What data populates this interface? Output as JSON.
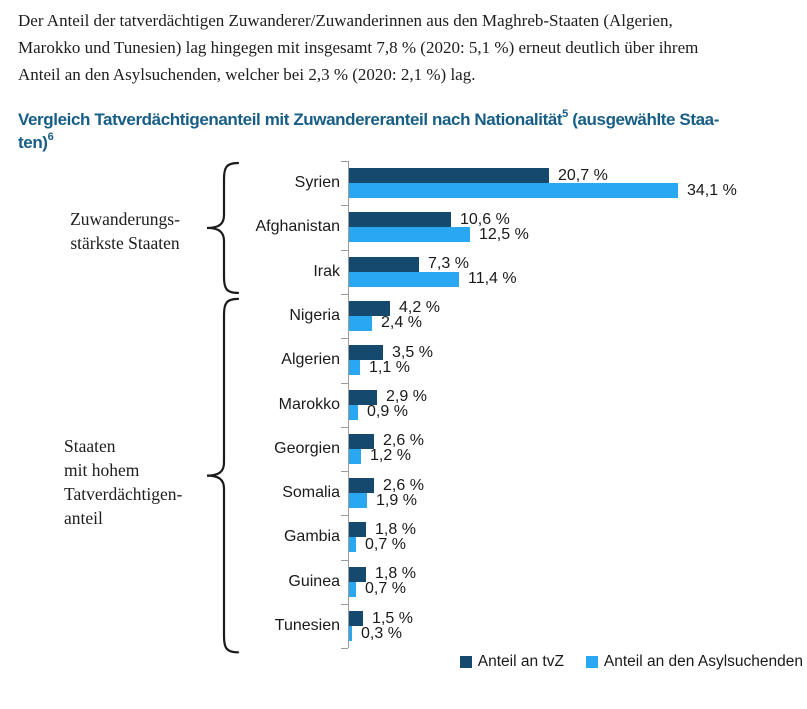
{
  "paragraph": {
    "lines": [
      "Der Anteil der tatverdächtigen Zuwanderer/Zuwanderinnen aus den Maghreb-Staaten (Algerien,",
      "Marokko und Tunesien) lag hingegen mit insgesamt 7,8 % (2020: 5,1 %) erneut deutlich über ihrem",
      "Anteil an den Asylsuchenden, welcher bei 2,3 % (2020: 2,1 %) lag."
    ]
  },
  "heading": {
    "part1": "Vergleich Tatverdächtigenanteil mit Zuwandereranteil nach Nationalität",
    "sup1": "5",
    "part2": " (ausgewählte Staa-",
    "part3": "ten)",
    "sup2": "6",
    "color": "#175e87"
  },
  "chart_data": {
    "type": "bar",
    "orientation": "horizontal",
    "title": "Vergleich Tatverdächtigenanteil mit Zuwandereranteil nach Nationalität (ausgewählte Staaten)",
    "xlabel": "",
    "ylabel": "",
    "xlim": [
      0,
      35
    ],
    "unit": "%",
    "decimal_separator": ",",
    "grid": false,
    "legend_position": "bottom-right",
    "axis_color": "#9c9c9c",
    "text_color": "#1a1a1a",
    "categories": [
      "Syrien",
      "Afghanistan",
      "Irak",
      "Nigeria",
      "Algerien",
      "Marokko",
      "Georgien",
      "Somalia",
      "Gambia",
      "Guinea",
      "Tunesien"
    ],
    "series": [
      {
        "name": "Anteil an tvZ",
        "color": "#154a6e",
        "values": [
          20.7,
          10.6,
          7.3,
          4.2,
          3.5,
          2.9,
          2.6,
          2.6,
          1.8,
          1.8,
          1.5
        ]
      },
      {
        "name": "Anteil an den Asylsuchenden",
        "color": "#29a7f0",
        "values": [
          34.1,
          12.5,
          11.4,
          2.4,
          1.1,
          0.9,
          1.2,
          1.9,
          0.7,
          0.7,
          0.3
        ]
      }
    ],
    "groups": [
      {
        "label_lines": [
          "Zuwanderungs-",
          "stärkste Staaten"
        ],
        "first_row": 0,
        "last_row": 2,
        "align": "center"
      },
      {
        "label_lines": [
          "Staaten",
          "mit hohem",
          "Tatverdächtigen-",
          "anteil"
        ],
        "first_row": 3,
        "last_row": 10,
        "align": "left"
      }
    ]
  }
}
